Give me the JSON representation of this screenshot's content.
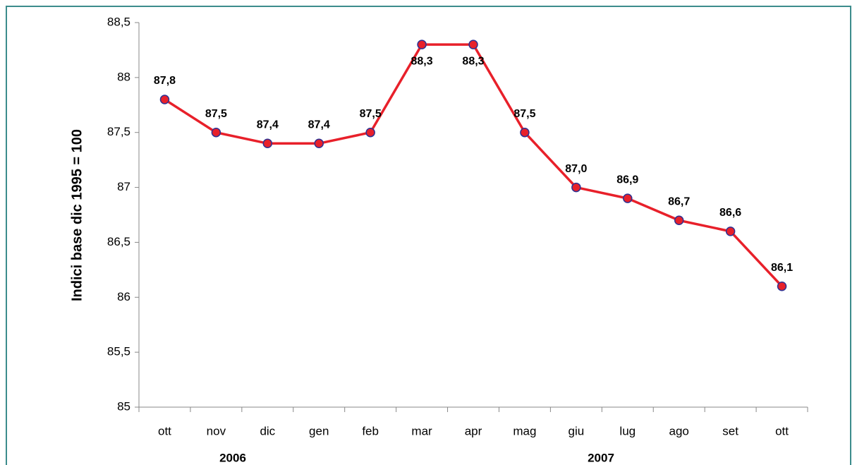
{
  "chart_data": {
    "type": "line",
    "y_axis_label": "Indici base dic 1995 = 100",
    "categories": [
      "ott",
      "nov",
      "dic",
      "gen",
      "feb",
      "mar",
      "apr",
      "mag",
      "giu",
      "lug",
      "ago",
      "set",
      "ott"
    ],
    "year_labels": [
      "2006",
      "2007"
    ],
    "values": [
      87.8,
      87.5,
      87.4,
      87.4,
      87.5,
      88.3,
      88.3,
      87.5,
      87.0,
      86.9,
      86.7,
      86.6,
      86.1
    ],
    "value_labels": [
      "87,8",
      "87,5",
      "87,4",
      "87,4",
      "87,5",
      "88,3",
      "88,3",
      "87,5",
      "87,0",
      "86,9",
      "86,7",
      "86,6",
      "86,1"
    ],
    "color": "#e8202a",
    "marker_edge_color": "#2e3192",
    "ylim": [
      85,
      88.5
    ],
    "yticks": [
      85,
      {
        "value": 85.5,
        "label": "85,5"
      },
      86,
      {
        "value": 86.5,
        "label": "86,5"
      },
      87,
      {
        "value": 87.5,
        "label": "87,5"
      },
      88,
      {
        "value": 88.5,
        "label": "88,5"
      }
    ],
    "grid": false
  }
}
